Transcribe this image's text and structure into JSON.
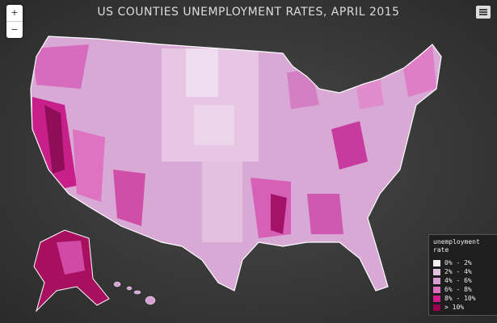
{
  "title": "US COUNTIES UNEMPLOYMENT RATES, APRIL 2015",
  "controls": {
    "zoom_in": "+",
    "zoom_out": "−"
  },
  "legend": {
    "title": "unemployment rate",
    "items": [
      {
        "label": "0% - 2%",
        "color": "#f6eef6"
      },
      {
        "label": "2% - 4%",
        "color": "#e2c4e0"
      },
      {
        "label": "4% - 6%",
        "color": "#d79fd4"
      },
      {
        "label": "6% - 8%",
        "color": "#dc6fc0"
      },
      {
        "label": "8% - 10%",
        "color": "#d11c8c"
      },
      {
        "label": "> 10%",
        "color": "#98004f"
      }
    ]
  }
}
